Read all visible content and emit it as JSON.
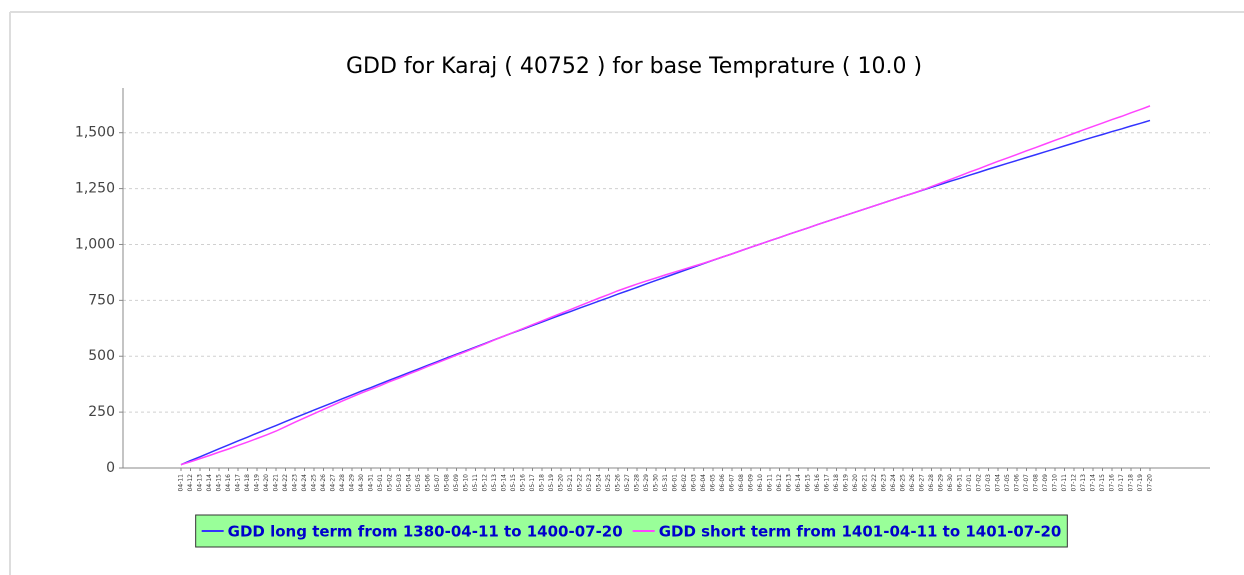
{
  "chart_data": {
    "type": "line",
    "title": "GDD for Karaj ( 40752 ) for base Temprature ( 10.0 )",
    "categories": [
      "04-11",
      "04-12",
      "04-13",
      "04-14",
      "04-15",
      "04-16",
      "04-17",
      "04-18",
      "04-19",
      "04-20",
      "04-21",
      "04-22",
      "04-23",
      "04-24",
      "04-25",
      "04-26",
      "04-27",
      "04-28",
      "04-29",
      "04-30",
      "04-31",
      "05-01",
      "05-02",
      "05-03",
      "05-04",
      "05-05",
      "05-06",
      "05-07",
      "05-08",
      "05-09",
      "05-10",
      "05-11",
      "05-12",
      "05-13",
      "05-14",
      "05-15",
      "05-16",
      "05-17",
      "05-18",
      "05-19",
      "05-20",
      "05-21",
      "05-22",
      "05-23",
      "05-24",
      "05-25",
      "05-26",
      "05-27",
      "05-28",
      "05-29",
      "05-30",
      "05-31",
      "06-01",
      "06-02",
      "06-03",
      "06-04",
      "06-05",
      "06-06",
      "06-07",
      "06-08",
      "06-09",
      "06-10",
      "06-11",
      "06-12",
      "06-13",
      "06-14",
      "06-15",
      "06-16",
      "06-17",
      "06-18",
      "06-19",
      "06-20",
      "06-21",
      "06-22",
      "06-23",
      "06-24",
      "06-25",
      "06-26",
      "06-27",
      "06-28",
      "06-29",
      "06-30",
      "06-31",
      "07-01",
      "07-02",
      "07-03",
      "07-04",
      "07-05",
      "07-06",
      "07-07",
      "07-08",
      "07-09",
      "07-10",
      "07-11",
      "07-12",
      "07-13",
      "07-14",
      "07-15",
      "07-16",
      "07-17",
      "07-18",
      "07-19",
      "07-20"
    ],
    "series": [
      {
        "name": "GDD long term from 1380-04-11 to 1400-07-20",
        "color": "#3333ff",
        "values": [
          15,
          33,
          50,
          68,
          86,
          103,
          121,
          138,
          156,
          173,
          190,
          208,
          225,
          242,
          259,
          276,
          293,
          310,
          327,
          344,
          360,
          377,
          394,
          410,
          427,
          443,
          460,
          476,
          493,
          509,
          525,
          541,
          557,
          574,
          590,
          606,
          621,
          637,
          653,
          669,
          685,
          700,
          716,
          731,
          747,
          762,
          778,
          793,
          808,
          824,
          839,
          854,
          869,
          884,
          899,
          914,
          929,
          944,
          958,
          973,
          988,
          1002,
          1017,
          1031,
          1046,
          1060,
          1074,
          1089,
          1103,
          1117,
          1131,
          1145,
          1159,
          1173,
          1187,
          1201,
          1215,
          1228,
          1242,
          1256,
          1269,
          1283,
          1296,
          1310,
          1323,
          1337,
          1350,
          1363,
          1376,
          1389,
          1402,
          1415,
          1428,
          1441,
          1454,
          1467,
          1480,
          1492,
          1505,
          1517,
          1530,
          1542,
          1555
        ]
      },
      {
        "name": "GDD short term from 1401-04-11 to 1401-07-20",
        "color": "#ff44ff",
        "values": [
          15,
          28,
          42,
          56,
          71,
          85,
          101,
          116,
          132,
          148,
          165,
          185,
          205,
          224,
          243,
          262,
          281,
          300,
          318,
          336,
          352,
          369,
          387,
          403,
          421,
          437,
          455,
          471,
          488,
          505,
          521,
          538,
          555,
          573,
          590,
          607,
          624,
          641,
          658,
          675,
          692,
          709,
          726,
          743,
          760,
          776,
          793,
          808,
          823,
          837,
          850,
          864,
          877,
          890,
          903,
          916,
          930,
          944,
          958,
          973,
          988,
          1002,
          1017,
          1031,
          1046,
          1060,
          1074,
          1089,
          1103,
          1117,
          1131,
          1145,
          1159,
          1173,
          1187,
          1201,
          1215,
          1228,
          1243,
          1259,
          1275,
          1291,
          1307,
          1324,
          1339,
          1356,
          1372,
          1387,
          1403,
          1419,
          1434,
          1450,
          1466,
          1481,
          1497,
          1513,
          1528,
          1543,
          1559,
          1573,
          1589,
          1604,
          1620
        ]
      }
    ],
    "ylim": [
      0,
      1700
    ],
    "yticks": [
      0,
      250,
      500,
      750,
      {
        "value": 1000,
        "label": "1,000"
      },
      {
        "value": 1250,
        "label": "1,250"
      },
      {
        "value": 1500,
        "label": "1,500"
      }
    ],
    "grid": true,
    "legend_position": "bottom",
    "legend_background": "#99ff99",
    "legend_text_color": "#0000cc"
  }
}
